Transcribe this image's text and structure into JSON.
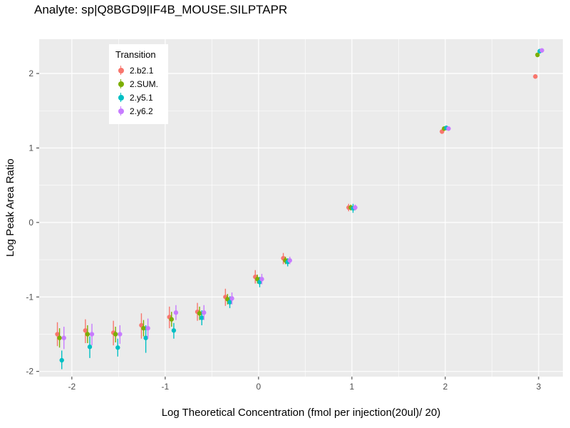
{
  "chart_data": {
    "type": "scatter",
    "title": "Analyte: sp|Q8BGD9|IF4B_MOUSE.SILPTAPR",
    "xlabel": "Log Theoretical Concentration (fmol per injection(20ul)/ 20)",
    "ylabel": "Log Peak Area Ratio",
    "xlim": [
      -2.35,
      3.26
    ],
    "ylim": [
      -2.07,
      2.46
    ],
    "x_ticks": [
      -2,
      -1,
      0,
      1,
      2,
      3
    ],
    "y_ticks": [
      -2,
      -1,
      0,
      1,
      2
    ],
    "grid": true,
    "panel_color": "#EBEBEB",
    "grid_color": "#FFFFFF",
    "tick_label_color": "#4D4D4D",
    "legend": {
      "title": "Transition",
      "position": "inside-top-left"
    },
    "dodge_offsets": [
      -0.035,
      -0.012,
      0.012,
      0.035
    ],
    "series": [
      {
        "name": "2.b2.1",
        "color": "#F8766D",
        "points": [
          [
            -2.12,
            -1.5,
            -1.66,
            -1.34
          ],
          [
            -1.82,
            -1.45,
            -1.62,
            -1.3
          ],
          [
            -1.52,
            -1.48,
            -1.65,
            -1.32
          ],
          [
            -1.22,
            -1.38,
            -1.56,
            -1.22
          ],
          [
            -0.92,
            -1.27,
            -1.42,
            -1.13
          ],
          [
            -0.62,
            -1.2,
            -1.32,
            -1.08
          ],
          [
            -0.32,
            -1.0,
            -1.12,
            -0.89
          ],
          [
            0.0,
            -0.73,
            -0.82,
            -0.64
          ],
          [
            0.3,
            -0.48,
            -0.56,
            -0.41
          ],
          [
            1.0,
            0.2,
            0.15,
            0.25
          ],
          [
            2.0,
            1.22,
            1.19,
            1.25
          ],
          [
            3.0,
            1.96,
            1.93,
            1.99
          ]
        ]
      },
      {
        "name": "2.SUM.",
        "color": "#7CAE00",
        "points": [
          [
            -2.12,
            -1.55,
            -1.68,
            -1.42
          ],
          [
            -1.82,
            -1.5,
            -1.62,
            -1.38
          ],
          [
            -1.52,
            -1.5,
            -1.61,
            -1.4
          ],
          [
            -1.22,
            -1.42,
            -1.53,
            -1.31
          ],
          [
            -0.92,
            -1.3,
            -1.4,
            -1.2
          ],
          [
            -0.62,
            -1.22,
            -1.31,
            -1.13
          ],
          [
            -0.32,
            -1.03,
            -1.1,
            -0.96
          ],
          [
            0.0,
            -0.76,
            -0.82,
            -0.7
          ],
          [
            0.3,
            -0.51,
            -0.56,
            -0.46
          ],
          [
            1.0,
            0.2,
            0.16,
            0.24
          ],
          [
            2.0,
            1.26,
            1.23,
            1.29
          ],
          [
            3.0,
            2.25,
            2.22,
            2.28
          ]
        ]
      },
      {
        "name": "2.y5.1",
        "color": "#00BFC4",
        "points": [
          [
            -2.12,
            -1.85,
            -1.97,
            -1.72
          ],
          [
            -1.82,
            -1.67,
            -1.82,
            -1.53
          ],
          [
            -1.52,
            -1.68,
            -1.8,
            -1.56
          ],
          [
            -1.22,
            -1.55,
            -1.75,
            -1.38
          ],
          [
            -0.92,
            -1.45,
            -1.56,
            -1.35
          ],
          [
            -0.62,
            -1.28,
            -1.38,
            -1.18
          ],
          [
            -0.32,
            -1.07,
            -1.15,
            -0.99
          ],
          [
            0.0,
            -0.8,
            -0.87,
            -0.73
          ],
          [
            0.3,
            -0.53,
            -0.59,
            -0.48
          ],
          [
            1.0,
            0.19,
            0.13,
            0.25
          ],
          [
            2.0,
            1.27,
            1.24,
            1.3
          ],
          [
            3.0,
            2.3,
            2.27,
            2.33
          ]
        ]
      },
      {
        "name": "2.y6.2",
        "color": "#C77CFF",
        "points": [
          [
            -2.12,
            -1.55,
            -1.7,
            -1.4
          ],
          [
            -1.82,
            -1.5,
            -1.65,
            -1.36
          ],
          [
            -1.52,
            -1.5,
            -1.63,
            -1.38
          ],
          [
            -1.22,
            -1.42,
            -1.56,
            -1.29
          ],
          [
            -0.92,
            -1.21,
            -1.31,
            -1.11
          ],
          [
            -0.62,
            -1.21,
            -1.31,
            -1.11
          ],
          [
            -0.32,
            -1.02,
            -1.1,
            -0.94
          ],
          [
            0.0,
            -0.76,
            -0.83,
            -0.69
          ],
          [
            0.3,
            -0.51,
            -0.56,
            -0.46
          ],
          [
            1.0,
            0.2,
            0.16,
            0.24
          ],
          [
            2.0,
            1.26,
            1.23,
            1.29
          ],
          [
            3.0,
            2.31,
            2.28,
            2.34
          ]
        ]
      }
    ]
  }
}
